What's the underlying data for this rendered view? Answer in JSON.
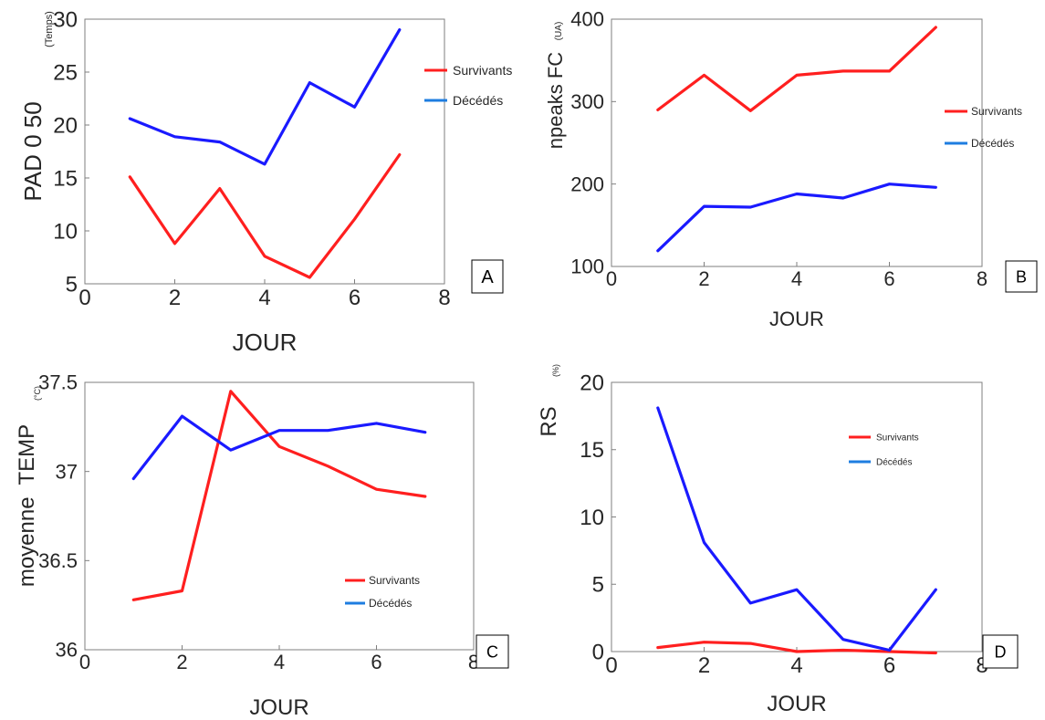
{
  "series_colors": {
    "survivants": "#ff1f1f",
    "decedes": "#1a1aff",
    "legend_decedes": "#1e7de0"
  },
  "chart_data": [
    {
      "id": "A",
      "type": "line",
      "panel_label": "A",
      "xlabel": "JOUR",
      "ylabel": "PAD 0 50",
      "ylabel_unit": "(Temps)",
      "xlim": [
        0,
        8
      ],
      "ylim": [
        5,
        30
      ],
      "xticks": [
        0,
        2,
        4,
        6,
        8
      ],
      "yticks": [
        5,
        10,
        15,
        20,
        25,
        30
      ],
      "legend_position": "top-right",
      "x": [
        1,
        2,
        3,
        4,
        5,
        6,
        7
      ],
      "series": [
        {
          "name": "Survivants",
          "color": "#ff1f1f",
          "values": [
            15.1,
            8.8,
            14.0,
            7.6,
            5.6,
            11.1,
            17.2
          ]
        },
        {
          "name": "Décédés",
          "color": "#1a1aff",
          "values": [
            20.6,
            18.9,
            18.4,
            16.3,
            24.0,
            21.7,
            29.0
          ]
        }
      ]
    },
    {
      "id": "B",
      "type": "line",
      "panel_label": "B",
      "xlabel": "JOUR",
      "ylabel": "npeaks FC",
      "ylabel_unit": "(UA)",
      "xlim": [
        0,
        8
      ],
      "ylim": [
        100,
        400
      ],
      "xticks": [
        0,
        2,
        4,
        6,
        8
      ],
      "yticks": [
        100,
        200,
        300,
        400
      ],
      "legend_position": "right",
      "x": [
        1,
        2,
        3,
        4,
        5,
        6,
        7
      ],
      "series": [
        {
          "name": "Survivants",
          "color": "#ff1f1f",
          "values": [
            290,
            332,
            289,
            332,
            337,
            337,
            390
          ]
        },
        {
          "name": "Décédés",
          "color": "#1a1aff",
          "values": [
            119,
            173,
            172,
            188,
            183,
            200,
            196
          ]
        }
      ]
    },
    {
      "id": "C",
      "type": "line",
      "panel_label": "C",
      "xlabel": "JOUR",
      "ylabel": "moyenne  TEMP",
      "ylabel_unit": "(°C)",
      "xlim": [
        0,
        8
      ],
      "ylim": [
        36,
        37.5
      ],
      "xticks": [
        0,
        2,
        4,
        6,
        8
      ],
      "yticks": [
        36,
        36.5,
        37,
        37.5
      ],
      "legend_position": "bottom-right",
      "x": [
        1,
        2,
        3,
        4,
        5,
        6,
        7
      ],
      "series": [
        {
          "name": "Survivants",
          "color": "#ff1f1f",
          "values": [
            36.28,
            36.33,
            37.45,
            37.14,
            37.03,
            36.9,
            36.86
          ]
        },
        {
          "name": "Décédés",
          "color": "#1a1aff",
          "values": [
            36.96,
            37.31,
            37.12,
            37.23,
            37.23,
            37.27,
            37.22
          ]
        }
      ]
    },
    {
      "id": "D",
      "type": "line",
      "panel_label": "D",
      "xlabel": "JOUR",
      "ylabel": "RS",
      "ylabel_unit": "(%)",
      "xlim": [
        0,
        8
      ],
      "ylim": [
        0,
        20
      ],
      "xticks": [
        0,
        2,
        4,
        6,
        8
      ],
      "yticks": [
        0,
        5,
        10,
        15,
        20
      ],
      "legend_position": "top-right",
      "x": [
        1,
        2,
        3,
        4,
        5,
        6,
        7
      ],
      "series": [
        {
          "name": "Survivants",
          "color": "#ff1f1f",
          "values": [
            0.3,
            0.7,
            0.6,
            0.0,
            0.1,
            0.0,
            -0.1
          ]
        },
        {
          "name": "Décédés",
          "color": "#1a1aff",
          "values": [
            18.1,
            8.1,
            3.6,
            4.6,
            0.9,
            0.1,
            4.6
          ]
        }
      ]
    }
  ]
}
